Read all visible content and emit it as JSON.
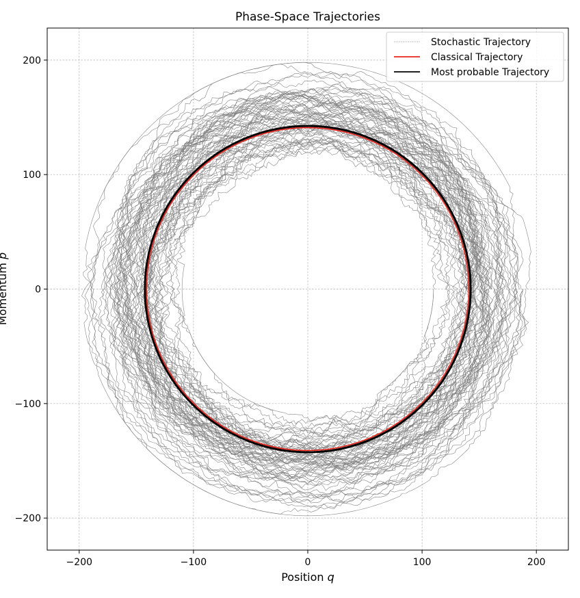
{
  "chart_data": {
    "type": "line",
    "title": "Phase-Space Trajectories",
    "xlabel": "Position",
    "xlabel_var": "q",
    "ylabel": "Momentum",
    "ylabel_var": "p",
    "xlim": [
      -228,
      228
    ],
    "ylim": [
      -228,
      228
    ],
    "xticks": [
      -200,
      -100,
      0,
      100,
      200
    ],
    "yticks": [
      -200,
      -100,
      0,
      100,
      200
    ],
    "xtick_labels": [
      "−200",
      "−100",
      "0",
      "100",
      "200"
    ],
    "ytick_labels": [
      "−200",
      "−100",
      "0",
      "100",
      "200"
    ],
    "grid": true,
    "legend_position": "top-right",
    "series": [
      {
        "name": "Stochastic Trajectory",
        "color": "#808080",
        "style": "thin noisy orbit",
        "count": 70,
        "radius_range": [
          115,
          195
        ],
        "center": [
          0,
          0
        ]
      },
      {
        "name": "Classical Trajectory",
        "color": "#e8231a",
        "radius": 141,
        "center": [
          0,
          0
        ]
      },
      {
        "name": "Most probable Trajectory",
        "color": "#000000",
        "radius": 142.5,
        "center": [
          0,
          0
        ]
      }
    ]
  }
}
